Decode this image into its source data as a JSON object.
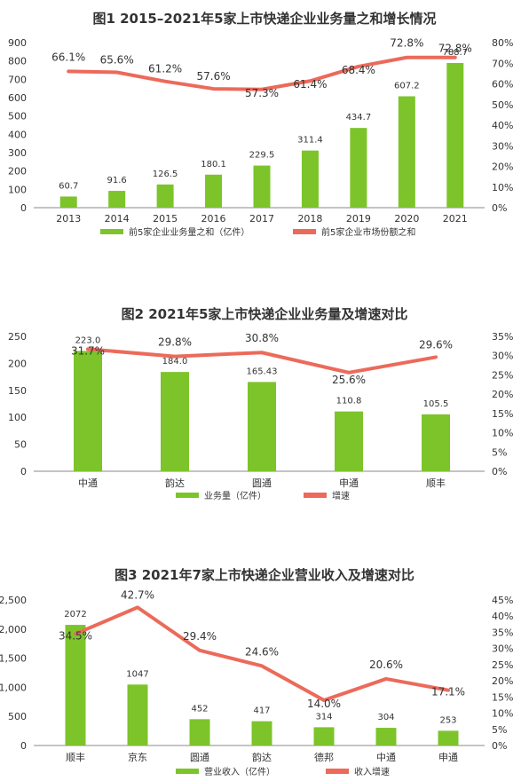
{
  "chart_data": [
    {
      "type": "bar",
      "title": "图1 2015–2021年5家上市快递企业业务量之和增长情况",
      "categories": [
        "2013",
        "2014",
        "2015",
        "2016",
        "2017",
        "2018",
        "2019",
        "2020",
        "2021"
      ],
      "series": [
        {
          "name": "前5家企业业务量之和（亿件）",
          "type": "bar",
          "axis": "left",
          "values": [
            60.7,
            91.6,
            126.5,
            180.1,
            229.5,
            311.4,
            434.7,
            607.2,
            788.7
          ],
          "labels": [
            "60.7",
            "91.6",
            "126.5",
            "180.1",
            "229.5",
            "311.4",
            "434.7",
            "607.2",
            "788.7"
          ]
        },
        {
          "name": "前5家企业市场份额之和",
          "type": "line",
          "axis": "right",
          "values": [
            66.1,
            65.6,
            61.2,
            57.6,
            57.3,
            61.4,
            68.4,
            72.8,
            72.8
          ],
          "labels": [
            "66.1%",
            "65.6%",
            "61.2%",
            "57.6%",
            "57.3%",
            "61.4%",
            "68.4%",
            "72.8%",
            "72.8%"
          ]
        }
      ],
      "ylim": [
        0,
        900
      ],
      "yticks": [
        "0",
        "100",
        "200",
        "300",
        "400",
        "500",
        "600",
        "700",
        "800",
        "900"
      ],
      "y2lim": [
        0,
        80
      ],
      "y2ticks": [
        "0%",
        "10%",
        "20%",
        "30%",
        "40%",
        "50%",
        "60%",
        "70%",
        "80%"
      ],
      "legend": "bottom",
      "grid": false
    },
    {
      "type": "bar",
      "title": "图2 2021年5家上市快递企业业务量及增速对比",
      "categories": [
        "中通",
        "韵达",
        "圆通",
        "申通",
        "顺丰"
      ],
      "series": [
        {
          "name": "业务量（亿件）",
          "type": "bar",
          "axis": "left",
          "values": [
            223.0,
            184.0,
            165.43,
            110.8,
            105.5
          ],
          "labels": [
            "223.0",
            "184.0",
            "165.43",
            "110.8",
            "105.5"
          ]
        },
        {
          "name": "增速",
          "type": "line",
          "axis": "right",
          "values": [
            31.7,
            29.8,
            30.8,
            25.6,
            29.6
          ],
          "labels": [
            "31.7%",
            "29.8%",
            "30.8%",
            "25.6%",
            "29.6%"
          ]
        }
      ],
      "ylim": [
        0,
        250
      ],
      "yticks": [
        "0",
        "50",
        "100",
        "150",
        "200",
        "250"
      ],
      "y2lim": [
        0,
        35
      ],
      "y2ticks": [
        "0%",
        "5%",
        "10%",
        "15%",
        "20%",
        "25%",
        "30%",
        "35%"
      ],
      "legend": "bottom",
      "grid": false
    },
    {
      "type": "bar",
      "title": "图3 2021年7家上市快递企业营业收入及增速对比",
      "categories": [
        "顺丰",
        "京东",
        "圆通",
        "韵达",
        "德邦",
        "中通",
        "申通"
      ],
      "series": [
        {
          "name": "营业收入（亿件）",
          "type": "bar",
          "axis": "left",
          "values": [
            2072,
            1047,
            452,
            417,
            314,
            304,
            253
          ],
          "labels": [
            "2072",
            "1047",
            "452",
            "417",
            "314",
            "304",
            "253"
          ]
        },
        {
          "name": "收入增速",
          "type": "line",
          "axis": "right",
          "values": [
            34.5,
            42.7,
            29.4,
            24.6,
            14.0,
            20.6,
            17.1
          ],
          "labels": [
            "34.5%",
            "42.7%",
            "29.4%",
            "24.6%",
            "14.0%",
            "20.6%",
            "17.1%"
          ]
        }
      ],
      "ylim": [
        0,
        2500
      ],
      "yticks": [
        "0",
        "500",
        "1,000",
        "1,500",
        "2,000",
        "2,500"
      ],
      "y2lim": [
        0,
        45
      ],
      "y2ticks": [
        "0%",
        "5%",
        "10%",
        "15%",
        "20%",
        "25%",
        "30%",
        "35%",
        "40%",
        "45%"
      ],
      "legend": "bottom",
      "grid": false
    }
  ],
  "colors": {
    "bar": "#7cc42a",
    "line": "#ec6a5a",
    "axis": "#555555",
    "text": "#333333"
  }
}
